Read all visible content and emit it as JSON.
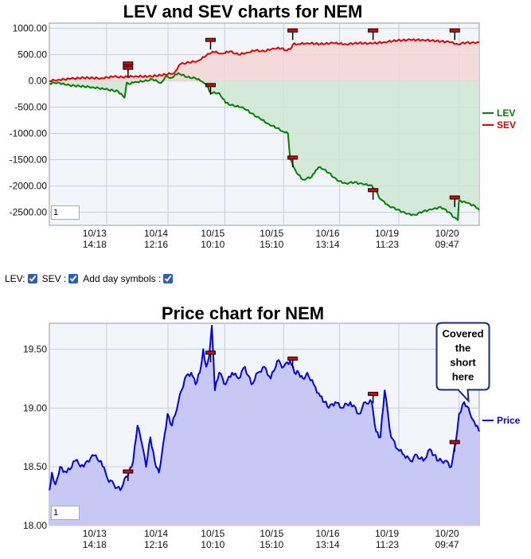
{
  "controls": {
    "lev_label": "LEV:",
    "sev_label": "SEV :",
    "day_symbols_label": "Add day symbols :",
    "lev_checked": true,
    "sev_checked": true,
    "day_symbols_checked": true
  },
  "chart_data": [
    {
      "type": "area",
      "title": "LEV and SEV charts for NEM",
      "ylim": [
        -2750,
        1100
      ],
      "yticks": [
        1000,
        500,
        0,
        -500,
        -1000,
        -1500,
        -2000,
        -2500
      ],
      "ytick_labels": [
        "1000.00",
        "500.00",
        "0.00",
        "-500.00",
        "-1000.00",
        "-1500.00",
        "-2000.00",
        "-2500.00"
      ],
      "x_range": [
        0,
        100
      ],
      "xtick_positions": [
        13.3,
        27.6,
        40.8,
        54.5,
        67.5,
        81.3,
        95.3
      ],
      "xtick_labels": [
        [
          "10/13",
          "14:18"
        ],
        [
          "10/14",
          "12:16"
        ],
        [
          "10/15",
          "10:10"
        ],
        [
          "10/15",
          "15:10"
        ],
        [
          "10/16",
          "13:14"
        ],
        [
          "10/19",
          "11:23"
        ],
        [
          "10/20",
          "09:47"
        ]
      ],
      "legend": "right",
      "zoom_value": "1",
      "series": [
        {
          "name": "LEV",
          "color": "#008000",
          "fill": "#cfe6d3",
          "x": [
            0,
            2,
            4,
            7,
            10,
            13,
            16,
            17.5,
            18,
            18.5,
            20,
            22,
            24,
            26,
            27,
            28.5,
            30,
            32,
            34,
            35.5,
            36.5,
            37.5,
            39.5,
            41,
            43,
            45,
            47,
            49,
            51,
            53,
            54.5,
            55.5,
            56,
            57.5,
            59,
            61,
            62,
            63,
            65,
            67,
            69,
            71,
            73,
            75,
            76,
            77,
            79,
            81,
            83,
            85,
            87,
            89,
            91,
            93,
            94.2,
            95,
            95.3,
            97,
            99,
            100
          ],
          "values": [
            -50,
            -30,
            -80,
            -100,
            -120,
            -160,
            -200,
            -320,
            -30,
            -60,
            -20,
            -10,
            30,
            -40,
            80,
            60,
            150,
            70,
            50,
            -10,
            -60,
            -230,
            -230,
            -420,
            -480,
            -500,
            -620,
            -720,
            -820,
            -900,
            -970,
            -1000,
            -1480,
            -1750,
            -1880,
            -1830,
            -1700,
            -1640,
            -1750,
            -1900,
            -1950,
            -1930,
            -1970,
            -1990,
            -2100,
            -2250,
            -2380,
            -2450,
            -2530,
            -2550,
            -2480,
            -2450,
            -2400,
            -2500,
            -2600,
            -2650,
            -2280,
            -2320,
            -2380,
            -2460
          ]
        },
        {
          "name": "SEV",
          "color": "#e00000",
          "fill": "#f4d5d5",
          "x": [
            0,
            2,
            5,
            8,
            12,
            15,
            17,
            20,
            23,
            27,
            29,
            30.5,
            32.5,
            34.5,
            36.5,
            38,
            40,
            42,
            44,
            46,
            48,
            50,
            52,
            54,
            55,
            56,
            56.7,
            58,
            60,
            63,
            66,
            69,
            72,
            75,
            78,
            81,
            84,
            87,
            90,
            93,
            95,
            97,
            99,
            100
          ],
          "values": [
            0,
            20,
            40,
            60,
            50,
            80,
            70,
            90,
            80,
            120,
            150,
            320,
            350,
            380,
            480,
            560,
            520,
            560,
            500,
            540,
            580,
            560,
            620,
            620,
            580,
            600,
            700,
            700,
            720,
            700,
            720,
            700,
            720,
            710,
            740,
            770,
            780,
            780,
            760,
            740,
            700,
            730,
            720,
            730
          ]
        }
      ],
      "markers": [
        {
          "x": 18.3,
          "y": 330
        },
        {
          "x": 18.3,
          "y": 250
        },
        {
          "x": 37.5,
          "y": 780
        },
        {
          "x": 37.5,
          "y": -80
        },
        {
          "x": 56.6,
          "y": 960
        },
        {
          "x": 56.6,
          "y": -1460
        },
        {
          "x": 75.3,
          "y": 960
        },
        {
          "x": 75.3,
          "y": -2080
        },
        {
          "x": 94.3,
          "y": 960
        },
        {
          "x": 94.3,
          "y": -2220
        }
      ]
    },
    {
      "type": "area",
      "title": "Price chart for NEM",
      "ylim": [
        18.0,
        19.72
      ],
      "yticks": [
        19.5,
        19.0,
        18.5,
        18.0
      ],
      "ytick_labels": [
        "19.50",
        "19.00",
        "18.50",
        "18.00"
      ],
      "x_range": [
        0,
        100
      ],
      "xtick_positions": [
        13.3,
        27.6,
        40.8,
        54.5,
        67.5,
        81.3,
        95.3
      ],
      "xtick_labels": [
        [
          "10/13",
          "14:18"
        ],
        [
          "10/14",
          "12:16"
        ],
        [
          "10/15",
          "10:10"
        ],
        [
          "10/15",
          "15:10"
        ],
        [
          "10/16",
          "13:14"
        ],
        [
          "10/19",
          "11:23"
        ],
        [
          "10/20",
          "09:47"
        ]
      ],
      "legend": "right",
      "zoom_value": "1",
      "series": [
        {
          "name": "Price",
          "color": "#0000ee",
          "fill": "#c8c8f5",
          "x": [
            0,
            0.6,
            1.4,
            2.5,
            4,
            6,
            8,
            10,
            12,
            13.5,
            15,
            16.5,
            17.5,
            18.5,
            19.5,
            20.5,
            21.5,
            22.5,
            23.5,
            24.5,
            25.5,
            26.5,
            27.5,
            28.5,
            30,
            31.5,
            33,
            34,
            35,
            35.8,
            36.5,
            37.2,
            37.8,
            38.5,
            39.5,
            41,
            42.5,
            44,
            45.5,
            47,
            48.5,
            50,
            51.5,
            53,
            54.5,
            56,
            57,
            58,
            59,
            60,
            61.5,
            63,
            64,
            65,
            66.5,
            68,
            70,
            72,
            73.5,
            75,
            76,
            77,
            78,
            79.5,
            81,
            82.5,
            84,
            85.5,
            87,
            88.5,
            89.5,
            90.5,
            92,
            93.5,
            94.5,
            95.3,
            96.5,
            97.5,
            98.5,
            99.5,
            100
          ],
          "values": [
            18.3,
            18.45,
            18.35,
            18.5,
            18.45,
            18.55,
            18.5,
            18.6,
            18.55,
            18.4,
            18.35,
            18.3,
            18.4,
            18.45,
            18.55,
            18.85,
            18.7,
            18.5,
            18.75,
            18.55,
            18.45,
            18.7,
            18.95,
            18.85,
            19.05,
            19.25,
            19.3,
            19.2,
            19.3,
            19.5,
            19.35,
            19.45,
            19.7,
            19.15,
            19.3,
            19.2,
            19.3,
            19.25,
            19.35,
            19.2,
            19.3,
            19.35,
            19.25,
            19.4,
            19.35,
            19.4,
            19.3,
            19.3,
            19.25,
            19.3,
            19.2,
            19.1,
            19.05,
            19.0,
            19.05,
            19.0,
            19.05,
            18.95,
            19.05,
            19.05,
            18.8,
            18.75,
            19.15,
            18.75,
            18.65,
            18.6,
            18.55,
            18.6,
            18.55,
            18.65,
            18.6,
            18.55,
            18.55,
            18.5,
            18.7,
            18.95,
            19.05,
            19.0,
            18.9,
            18.85,
            18.8
          ],
          "series_markers": []
        }
      ],
      "markers": [
        {
          "x": 18.3,
          "y": 18.46
        },
        {
          "x": 37.5,
          "y": 19.47
        },
        {
          "x": 56.6,
          "y": 19.42
        },
        {
          "x": 75.3,
          "y": 19.12
        },
        {
          "x": 94.3,
          "y": 18.71
        }
      ],
      "annotation": {
        "text_lines": [
          "Covered",
          "the",
          "short",
          "here"
        ],
        "target_x": 97.5,
        "target_y": 19.06
      }
    }
  ]
}
